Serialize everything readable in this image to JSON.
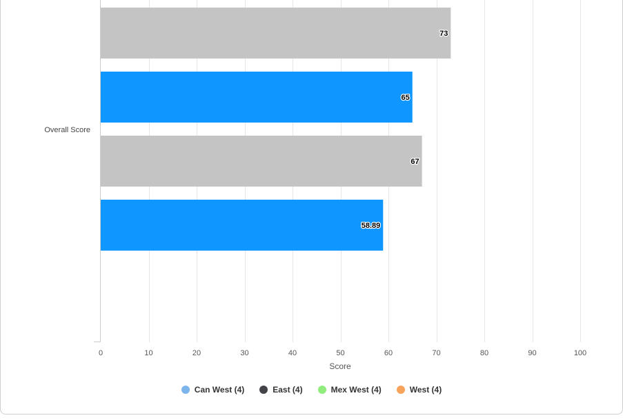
{
  "chart_data": {
    "type": "bar",
    "orientation": "horizontal",
    "category": "Overall Score",
    "bars": [
      {
        "value": 73,
        "label": "73",
        "color": "#c4c4c4"
      },
      {
        "value": 65,
        "label": "65",
        "color": "#0f96ff"
      },
      {
        "value": 67,
        "label": "67",
        "color": "#c4c4c4"
      },
      {
        "value": 58.89,
        "label": "58.89",
        "color": "#0f96ff"
      }
    ],
    "xlabel": "Score",
    "xlim": [
      0,
      100
    ],
    "xticks": [
      "0",
      "10",
      "20",
      "30",
      "40",
      "50",
      "60",
      "70",
      "80",
      "90",
      "100"
    ],
    "grid": true,
    "legend": {
      "placement": "bottom",
      "items": [
        {
          "label": "Can West (4)",
          "color": "#7cb5ec"
        },
        {
          "label": "East (4)",
          "color": "#434348"
        },
        {
          "label": "Mex West (4)",
          "color": "#90ed7d"
        },
        {
          "label": "West (4)",
          "color": "#f7a35c"
        }
      ]
    }
  }
}
